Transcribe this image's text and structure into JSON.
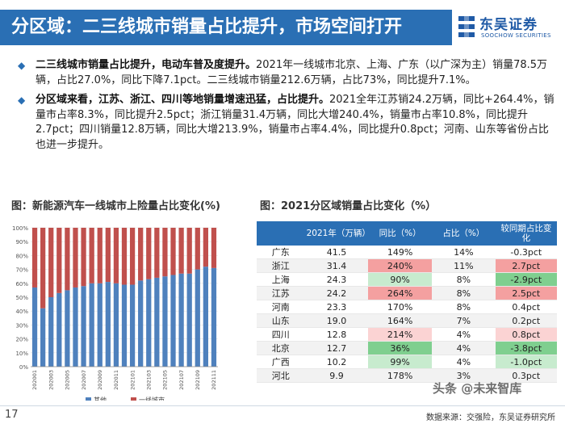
{
  "header": {
    "title": "分区域：二三线城市销量占比提升，市场空间打开",
    "logo_cn": "东吴证券",
    "logo_en": "SOOCHOW SECURITIES",
    "accent": "#2a6fb4"
  },
  "bullets": [
    {
      "bold": "二三线城市销量占比提升，电动车普及度提升。",
      "text": "2021年一线城市北京、上海、广东（以广深为主）销量78.5万辆，占比27.0%，同比下降7.1pct。二三线城市销量212.6万辆，占比73%，同比提升7.1%。"
    },
    {
      "bold": "分区域来看，江苏、浙江、四川等地销量增速迅猛，占比提升。",
      "text": "2021全年江苏销24.2万辆，同比+264.4%，销量市占率8.3%，同比提升2.5pct；浙江销量31.4万辆，同比大增240.4%，销量市占率10.8%，同比提升2.7pct；四川销量12.8万辆，同比大增213.9%，销量市占率4.4%，同比提升0.8pct；河南、山东等省份占比也进一步提升。"
    }
  ],
  "left_chart_title": "图：新能源汽车一线城市上险量占比变化(%)",
  "right_table_title": "图：2021分区域销量占比变化（%）",
  "chart_data": {
    "type": "bar",
    "stacked": true,
    "title": "新能源汽车一线城市上险量占比变化(%)",
    "categories": [
      "202001",
      "202002",
      "202003",
      "202004",
      "202005",
      "202006",
      "202007",
      "202008",
      "202009",
      "202010",
      "202011",
      "202012",
      "202101",
      "202102",
      "202103",
      "202104",
      "202105",
      "202106",
      "202107",
      "202108",
      "202109",
      "202110",
      "202111"
    ],
    "x_tick_labels": [
      "202001",
      "202003",
      "202005",
      "202007",
      "202009",
      "202011",
      "202101",
      "202103",
      "202105",
      "202107",
      "202109",
      "202111"
    ],
    "series": [
      {
        "name": "其他",
        "color": "#4f81bd",
        "values": [
          57,
          42,
          50,
          53,
          55,
          57,
          58,
          60,
          60,
          61,
          60,
          59,
          59,
          62,
          63,
          64,
          65,
          66,
          67,
          67,
          70,
          72,
          71
        ]
      },
      {
        "name": "一线城市",
        "color": "#c0504d",
        "values": [
          43,
          58,
          50,
          47,
          45,
          43,
          42,
          40,
          40,
          39,
          40,
          41,
          41,
          38,
          37,
          36,
          35,
          34,
          33,
          33,
          30,
          28,
          29
        ]
      }
    ],
    "ylim": [
      0,
      100
    ],
    "y_ticks": [
      "0%",
      "10%",
      "20%",
      "30%",
      "40%",
      "50%",
      "60%",
      "70%",
      "80%",
      "90%",
      "100%"
    ],
    "legend": [
      "其他",
      "一线城市"
    ],
    "legend_position": "bottom"
  },
  "table": {
    "headers": [
      "",
      "2021年（万辆）",
      "同比（%）",
      "占比（%）",
      "较同期占比变化"
    ],
    "rows": [
      {
        "prov": "广东",
        "sales": "41.5",
        "yoy": "149%",
        "share": "14%",
        "chg": "-0.3pct",
        "yoy_tone": "neutral",
        "chg_tone": "neutral"
      },
      {
        "prov": "浙江",
        "sales": "31.4",
        "yoy": "240%",
        "share": "11%",
        "chg": "2.7pct",
        "yoy_tone": "hi-red",
        "chg_tone": "hi-red"
      },
      {
        "prov": "上海",
        "sales": "24.3",
        "yoy": "90%",
        "share": "8%",
        "chg": "-2.9pct",
        "yoy_tone": "lo-green",
        "chg_tone": "hi-green"
      },
      {
        "prov": "江苏",
        "sales": "24.2",
        "yoy": "264%",
        "share": "8%",
        "chg": "2.5pct",
        "yoy_tone": "hi-red",
        "chg_tone": "hi-red"
      },
      {
        "prov": "河南",
        "sales": "23.3",
        "yoy": "170%",
        "share": "8%",
        "chg": "0.4pct",
        "yoy_tone": "neutral",
        "chg_tone": "neutral"
      },
      {
        "prov": "山东",
        "sales": "19.0",
        "yoy": "164%",
        "share": "7%",
        "chg": "0.2pct",
        "yoy_tone": "neutral",
        "chg_tone": "neutral"
      },
      {
        "prov": "四川",
        "sales": "12.8",
        "yoy": "214%",
        "share": "4%",
        "chg": "0.8pct",
        "yoy_tone": "lo-red",
        "chg_tone": "lo-red"
      },
      {
        "prov": "北京",
        "sales": "12.7",
        "yoy": "36%",
        "share": "4%",
        "chg": "-3.8pct",
        "yoy_tone": "hi-green",
        "chg_tone": "hi-green"
      },
      {
        "prov": "广西",
        "sales": "10.2",
        "yoy": "99%",
        "share": "4%",
        "chg": "-1.0pct",
        "yoy_tone": "lo-green",
        "chg_tone": "lo-green"
      },
      {
        "prov": "河北",
        "sales": "9.9",
        "yoy": "178%",
        "share": "3%",
        "chg": "0.3pct",
        "yoy_tone": "neutral",
        "chg_tone": "neutral"
      }
    ]
  },
  "footer": {
    "page_number": "17",
    "source": "数据来源：交强险，东吴证券研究所",
    "watermark": "头条 @未来智库"
  }
}
